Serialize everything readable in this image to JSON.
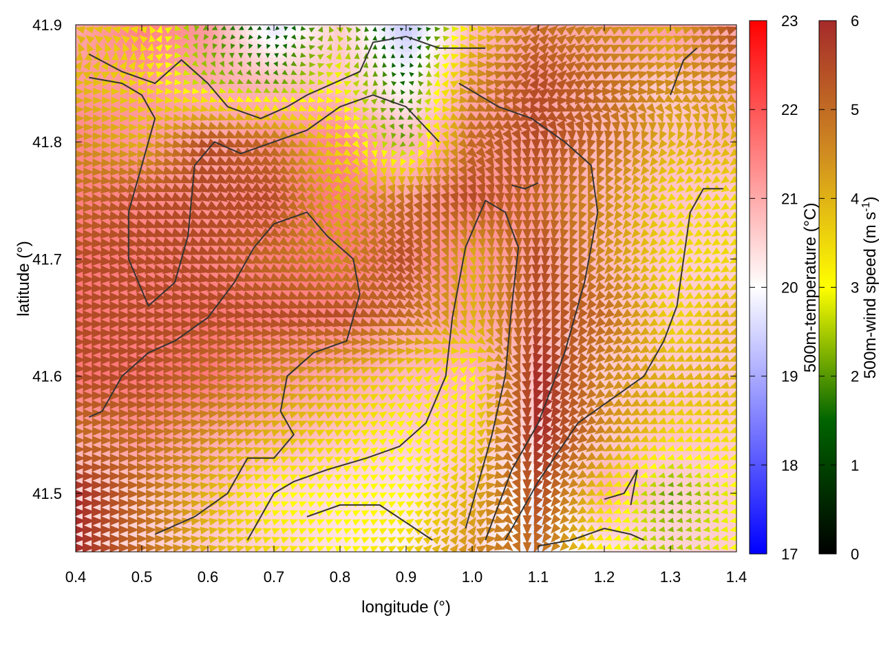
{
  "chart_data": {
    "type": "heatmap",
    "title": "",
    "xlabel": "longitude (°)",
    "ylabel": "latitude (°)",
    "xlim": [
      0.4,
      1.4
    ],
    "ylim": [
      41.45,
      41.9
    ],
    "x_ticks": [
      "0.4",
      "0.5",
      "0.6",
      "0.7",
      "0.8",
      "0.9",
      "1.0",
      "1.1",
      "1.2",
      "1.3",
      "1.4"
    ],
    "y_ticks": [
      "41.5",
      "41.6",
      "41.7",
      "41.8",
      "41.9"
    ],
    "overlay": "wind vectors colored by wind speed, coastline/terrain contour lines",
    "colorbars": [
      {
        "label": "500m-temperature (°C)",
        "range": [
          17,
          23
        ],
        "ticks": [
          "17",
          "18",
          "19",
          "20",
          "21",
          "22",
          "23"
        ],
        "colors": [
          "#0000ff",
          "#ffffff",
          "#ff0000"
        ]
      },
      {
        "label": "500m-wind speed (m s-1)",
        "label_main": "500m-wind speed (m s",
        "label_sup": "-1",
        "label_end": ")",
        "range": [
          0,
          6
        ],
        "ticks": [
          "0",
          "1",
          "2",
          "3",
          "4",
          "5",
          "6"
        ],
        "colors": [
          "#000000",
          "#006400",
          "#ffff00",
          "#d08c20",
          "#a52a2a"
        ]
      }
    ],
    "temperature_field": {
      "description": "approximate 500m-temperature values (°C) on a coarse grid",
      "lon": [
        0.4,
        0.5,
        0.6,
        0.7,
        0.8,
        0.9,
        1.0,
        1.1,
        1.2,
        1.3,
        1.4
      ],
      "lat": [
        41.9,
        41.85,
        41.8,
        41.75,
        41.7,
        41.65,
        41.6,
        41.55,
        41.5,
        41.45
      ],
      "values": [
        [
          21.0,
          21.5,
          21.2,
          19.6,
          20.6,
          19.3,
          20.8,
          21.0,
          21.0,
          21.2,
          21.0
        ],
        [
          21.2,
          21.2,
          21.0,
          20.8,
          20.7,
          20.0,
          21.0,
          21.2,
          20.8,
          20.6,
          20.8
        ],
        [
          21.4,
          21.2,
          21.0,
          21.3,
          21.4,
          20.8,
          21.2,
          21.0,
          20.8,
          20.7,
          20.8
        ],
        [
          21.5,
          21.4,
          21.3,
          21.4,
          21.6,
          21.0,
          21.4,
          21.2,
          20.8,
          20.7,
          20.6
        ],
        [
          21.6,
          21.5,
          21.4,
          21.5,
          21.6,
          21.3,
          21.3,
          21.0,
          20.8,
          20.6,
          20.5
        ],
        [
          21.6,
          21.5,
          21.6,
          21.5,
          21.4,
          21.0,
          21.1,
          20.9,
          20.7,
          20.6,
          20.6
        ],
        [
          21.6,
          21.6,
          21.6,
          21.2,
          21.0,
          20.8,
          20.9,
          20.7,
          20.6,
          20.6,
          20.6
        ],
        [
          21.0,
          21.3,
          21.0,
          20.9,
          20.7,
          20.6,
          20.7,
          20.5,
          20.6,
          20.7,
          20.6
        ],
        [
          20.5,
          20.6,
          20.8,
          20.5,
          20.4,
          20.3,
          20.6,
          19.8,
          21.0,
          20.5,
          20.6
        ],
        [
          20.4,
          20.5,
          20.6,
          20.5,
          20.3,
          20.1,
          20.5,
          19.7,
          20.3,
          20.5,
          20.6
        ]
      ]
    },
    "wind_field": {
      "description": "approximate 500m-wind speed (m s-1) and direction (degrees, math convention) on a coarse grid",
      "lon": [
        0.4,
        0.5,
        0.6,
        0.7,
        0.8,
        0.9,
        1.0,
        1.1,
        1.2,
        1.3,
        1.4
      ],
      "lat": [
        41.9,
        41.85,
        41.8,
        41.75,
        41.7,
        41.65,
        41.6,
        41.55,
        41.5,
        41.45
      ],
      "speed": [
        [
          4.0,
          3.5,
          2.0,
          1.0,
          2.5,
          0.5,
          3.5,
          5.0,
          4.5,
          4.0,
          5.5
        ],
        [
          4.0,
          3.5,
          2.5,
          2.0,
          3.0,
          1.5,
          4.5,
          5.5,
          5.0,
          4.5,
          4.5
        ],
        [
          4.5,
          4.0,
          5.5,
          5.0,
          3.5,
          2.0,
          5.0,
          5.5,
          5.0,
          4.0,
          4.0
        ],
        [
          5.0,
          5.5,
          5.5,
          5.5,
          4.0,
          5.0,
          5.5,
          5.0,
          4.5,
          3.5,
          3.5
        ],
        [
          5.5,
          5.5,
          5.5,
          5.0,
          4.5,
          5.5,
          4.0,
          5.5,
          4.5,
          3.5,
          3.5
        ],
        [
          5.5,
          5.5,
          5.5,
          5.5,
          5.5,
          5.0,
          4.0,
          5.5,
          5.0,
          3.5,
          4.0
        ],
        [
          5.5,
          5.5,
          5.0,
          4.5,
          4.0,
          3.5,
          3.0,
          6.0,
          4.5,
          4.0,
          4.0
        ],
        [
          5.0,
          5.0,
          4.5,
          4.0,
          3.5,
          3.0,
          3.5,
          6.0,
          4.5,
          3.5,
          3.5
        ],
        [
          6.0,
          5.0,
          4.0,
          3.0,
          3.0,
          3.0,
          4.0,
          5.5,
          3.5,
          2.0,
          3.0
        ],
        [
          6.0,
          5.0,
          4.0,
          3.5,
          3.0,
          3.5,
          4.5,
          5.0,
          3.0,
          2.5,
          3.0
        ]
      ],
      "direction": [
        [
          180,
          180,
          190,
          200,
          170,
          0,
          0,
          45,
          30,
          20,
          20
        ],
        [
          0,
          0,
          350,
          330,
          0,
          180,
          340,
          60,
          20,
          10,
          10
        ],
        [
          0,
          0,
          340,
          330,
          350,
          200,
          330,
          270,
          250,
          230,
          220
        ],
        [
          0,
          340,
          330,
          320,
          310,
          300,
          280,
          270,
          240,
          220,
          210
        ],
        [
          0,
          350,
          340,
          330,
          320,
          310,
          280,
          270,
          230,
          220,
          210
        ],
        [
          0,
          0,
          0,
          350,
          340,
          330,
          270,
          260,
          220,
          210,
          200
        ],
        [
          0,
          0,
          0,
          10,
          20,
          30,
          60,
          250,
          220,
          200,
          200
        ],
        [
          0,
          0,
          10,
          20,
          30,
          40,
          70,
          240,
          210,
          200,
          200
        ],
        [
          0,
          0,
          10,
          20,
          30,
          30,
          60,
          240,
          200,
          190,
          190
        ],
        [
          0,
          0,
          10,
          20,
          20,
          30,
          60,
          240,
          200,
          190,
          190
        ]
      ]
    },
    "contours": [
      [
        [
          0.42,
          41.875
        ],
        [
          0.47,
          41.86
        ],
        [
          0.52,
          41.85
        ],
        [
          0.56,
          41.87
        ],
        [
          0.6,
          41.85
        ],
        [
          0.63,
          41.83
        ],
        [
          0.68,
          41.82
        ],
        [
          0.72,
          41.83
        ],
        [
          0.75,
          41.84
        ],
        [
          0.79,
          41.85
        ],
        [
          0.83,
          41.86
        ],
        [
          0.85,
          41.885
        ],
        [
          0.9,
          41.89
        ],
        [
          0.95,
          41.88
        ],
        [
          1.02,
          41.88
        ]
      ],
      [
        [
          0.42,
          41.855
        ],
        [
          0.47,
          41.85
        ],
        [
          0.5,
          41.84
        ],
        [
          0.52,
          41.82
        ],
        [
          0.5,
          41.78
        ],
        [
          0.48,
          41.74
        ],
        [
          0.48,
          41.7
        ],
        [
          0.51,
          41.66
        ],
        [
          0.55,
          41.68
        ],
        [
          0.57,
          41.72
        ],
        [
          0.58,
          41.78
        ],
        [
          0.61,
          41.8
        ],
        [
          0.65,
          41.79
        ],
        [
          0.7,
          41.8
        ],
        [
          0.75,
          41.81
        ],
        [
          0.8,
          41.83
        ],
        [
          0.85,
          41.84
        ],
        [
          0.9,
          41.83
        ],
        [
          0.95,
          41.8
        ]
      ],
      [
        [
          0.42,
          41.565
        ],
        [
          0.44,
          41.57
        ],
        [
          0.47,
          41.6
        ],
        [
          0.51,
          41.62
        ],
        [
          0.55,
          41.63
        ],
        [
          0.6,
          41.65
        ],
        [
          0.64,
          41.68
        ],
        [
          0.67,
          41.71
        ],
        [
          0.7,
          41.73
        ],
        [
          0.75,
          41.74
        ],
        [
          0.78,
          41.72
        ],
        [
          0.82,
          41.7
        ],
        [
          0.83,
          41.67
        ],
        [
          0.81,
          41.63
        ],
        [
          0.76,
          41.62
        ],
        [
          0.72,
          41.6
        ],
        [
          0.71,
          41.57
        ],
        [
          0.73,
          41.55
        ],
        [
          0.7,
          41.53
        ],
        [
          0.66,
          41.53
        ],
        [
          0.63,
          41.5
        ],
        [
          0.58,
          41.48
        ],
        [
          0.52,
          41.465
        ]
      ],
      [
        [
          0.66,
          41.46
        ],
        [
          0.7,
          41.5
        ],
        [
          0.73,
          41.51
        ],
        [
          0.78,
          41.52
        ],
        [
          0.84,
          41.53
        ],
        [
          0.89,
          41.54
        ],
        [
          0.93,
          41.56
        ],
        [
          0.96,
          41.6
        ],
        [
          0.97,
          41.65
        ],
        [
          0.99,
          41.71
        ],
        [
          1.02,
          41.75
        ],
        [
          1.05,
          41.74
        ],
        [
          1.07,
          41.71
        ],
        [
          1.06,
          41.66
        ],
        [
          1.05,
          41.6
        ],
        [
          1.03,
          41.55
        ],
        [
          1.01,
          41.51
        ],
        [
          0.99,
          41.47
        ]
      ],
      [
        [
          0.75,
          41.48
        ],
        [
          0.8,
          41.49
        ],
        [
          0.86,
          41.49
        ],
        [
          0.9,
          41.475
        ],
        [
          0.94,
          41.46
        ]
      ],
      [
        [
          1.02,
          41.46
        ],
        [
          1.06,
          41.52
        ],
        [
          1.1,
          41.56
        ],
        [
          1.14,
          41.62
        ],
        [
          1.17,
          41.68
        ],
        [
          1.19,
          41.74
        ],
        [
          1.18,
          41.78
        ],
        [
          1.14,
          41.8
        ],
        [
          1.09,
          41.82
        ],
        [
          1.04,
          41.83
        ],
        [
          0.98,
          41.85
        ]
      ],
      [
        [
          1.05,
          41.46
        ],
        [
          1.1,
          41.51
        ],
        [
          1.16,
          41.56
        ],
        [
          1.21,
          41.58
        ],
        [
          1.26,
          41.6
        ],
        [
          1.29,
          41.63
        ],
        [
          1.31,
          41.66
        ],
        [
          1.32,
          41.7
        ],
        [
          1.33,
          41.74
        ],
        [
          1.35,
          41.76
        ],
        [
          1.38,
          41.76
        ]
      ],
      [
        [
          1.1,
          41.455
        ],
        [
          1.15,
          41.46
        ],
        [
          1.2,
          41.47
        ],
        [
          1.24,
          41.465
        ],
        [
          1.26,
          41.46
        ]
      ],
      [
        [
          1.2,
          41.495
        ],
        [
          1.23,
          41.5
        ],
        [
          1.25,
          41.52
        ],
        [
          1.24,
          41.49
        ]
      ],
      [
        [
          1.3,
          41.84
        ],
        [
          1.32,
          41.87
        ],
        [
          1.34,
          41.88
        ]
      ],
      [
        [
          1.06,
          41.763
        ],
        [
          1.08,
          41.76
        ],
        [
          1.1,
          41.765
        ]
      ]
    ]
  }
}
